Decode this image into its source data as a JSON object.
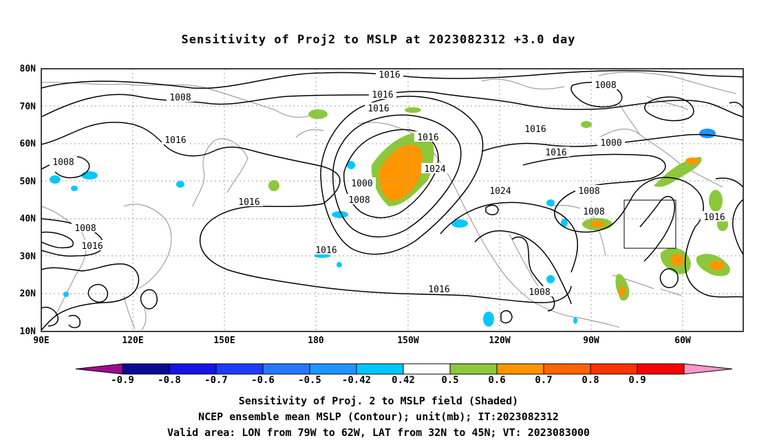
{
  "title": "Sensitivity of Proj2 to MSLP at 2023082312 +3.0 day",
  "axes": {
    "lat_labels": [
      "80N",
      "70N",
      "60N",
      "50N",
      "40N",
      "30N",
      "20N",
      "10N"
    ],
    "lon_labels": [
      "90E",
      "120E",
      "150E",
      "180",
      "150W",
      "120W",
      "90W",
      "60W"
    ]
  },
  "colorbar": {
    "colors": [
      "#9e0c8e",
      "#0a0a96",
      "#1414e6",
      "#1e3cff",
      "#2878ff",
      "#1e96ff",
      "#00c8ff",
      "#ffffff",
      "#8cc83c",
      "#ff9600",
      "#ff6400",
      "#ff3200",
      "#ff0000",
      "#ff96c8"
    ],
    "labels": [
      "-0.9",
      "-0.8",
      "-0.7",
      "-0.6",
      "-0.5",
      "-0.42",
      "0.42",
      "0.5",
      "0.6",
      "0.7",
      "0.8",
      "0.9"
    ]
  },
  "contour_labels": [
    "1016",
    "1016",
    "1008",
    "1016",
    "1016",
    "1008",
    "1008",
    "1016",
    "1000",
    "1008",
    "1000",
    "1016",
    "1024",
    "1008",
    "1016",
    "1016",
    "1008",
    "1008",
    "1016",
    "1024",
    "1016",
    "1016",
    "1016",
    "1008"
  ],
  "valid_area": {
    "lon_from": "79W",
    "lon_to": "62W",
    "lat_from": "32N",
    "lat_to": "45N"
  },
  "captions": {
    "line1": "Sensitivity of Proj. 2 to MSLP field (Shaded)",
    "line2": "NCEP ensemble mean MSLP (Contour); unit(mb); IT:2023082312",
    "line3": "Valid area: LON from 79W to 62W, LAT from 32N to 45N; VT: 2023083000"
  },
  "shading_colors": {
    "green": "#8cc83c",
    "orange": "#ff9600",
    "cyan": "#00c8ff",
    "blue": "#1e96ff"
  }
}
